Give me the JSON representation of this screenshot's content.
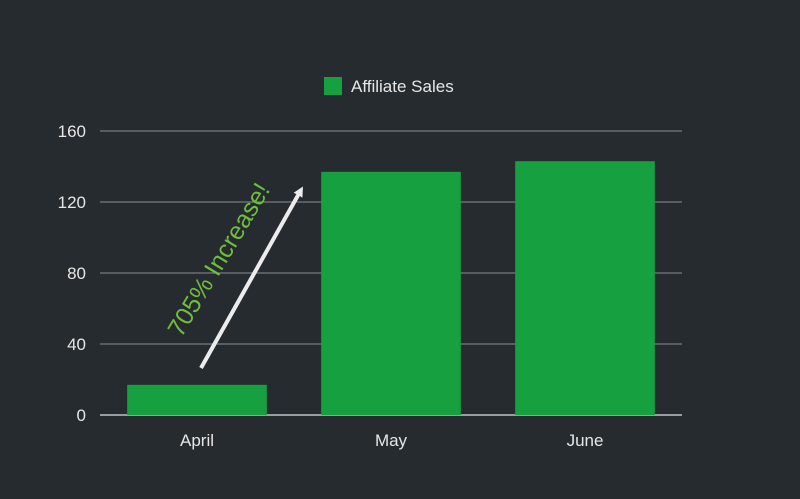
{
  "colors": {
    "background": "#262b2f",
    "bar": "#16a040",
    "grid": "#8a8f93",
    "axis_text": "#e6e6e6",
    "annotation_text": "#6fbe3f",
    "arrow": "#ececec"
  },
  "chart_data": {
    "type": "bar",
    "categories": [
      "April",
      "May",
      "June"
    ],
    "series": [
      {
        "name": "Affiliate Sales",
        "values": [
          17,
          137,
          143
        ]
      }
    ],
    "ylim": [
      0,
      160
    ],
    "yticks": [
      "0",
      "40",
      "80",
      "120",
      "160"
    ],
    "xlabel": "",
    "ylabel": "",
    "grid": true,
    "legend_position": "top-center",
    "annotation": {
      "text": "705% Increase!",
      "from_category": "April",
      "to_category": "May"
    }
  }
}
